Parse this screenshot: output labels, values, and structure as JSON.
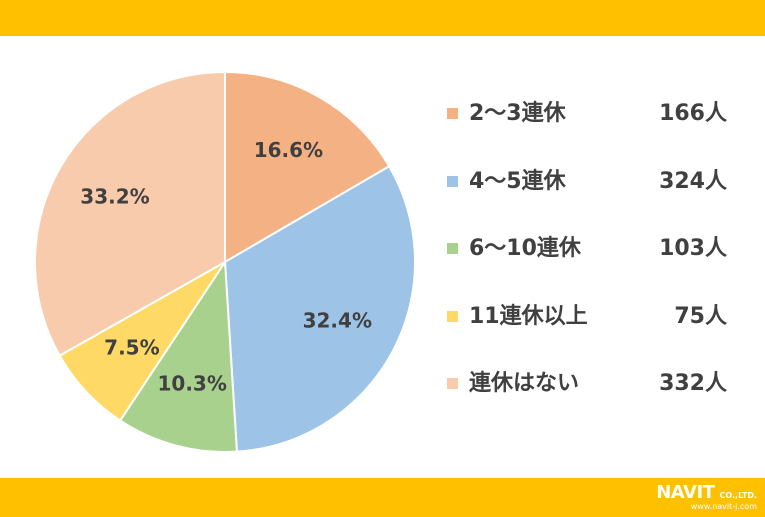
{
  "chart_data": {
    "type": "pie",
    "slices": [
      {
        "label": "2～3連休",
        "count": "166人",
        "value": 16.6,
        "pct_label": "16.6%",
        "color": "#F4B183"
      },
      {
        "label": "4～5連休",
        "count": "324人",
        "value": 32.4,
        "pct_label": "32.4%",
        "color": "#9DC3E6"
      },
      {
        "label": "6～10連休",
        "count": "103人",
        "value": 10.3,
        "pct_label": "10.3%",
        "color": "#A9D18E"
      },
      {
        "label": "11連休以上",
        "count": "75人",
        "value": 7.5,
        "pct_label": "7.5%",
        "color": "#FFD966"
      },
      {
        "label": "連休はない",
        "count": "332人",
        "value": 33.2,
        "pct_label": "33.2%",
        "color": "#F8CBAD"
      }
    ],
    "start_angle": "12 o'clock",
    "direction": "clockwise",
    "legend_position": "right"
  },
  "logo": {
    "brand": "NAVIT",
    "suffix": "CO.,LTD.",
    "url": "www.navit-j.com"
  },
  "theme": {
    "band_color": "#FFC000",
    "text_color": "#404040"
  }
}
